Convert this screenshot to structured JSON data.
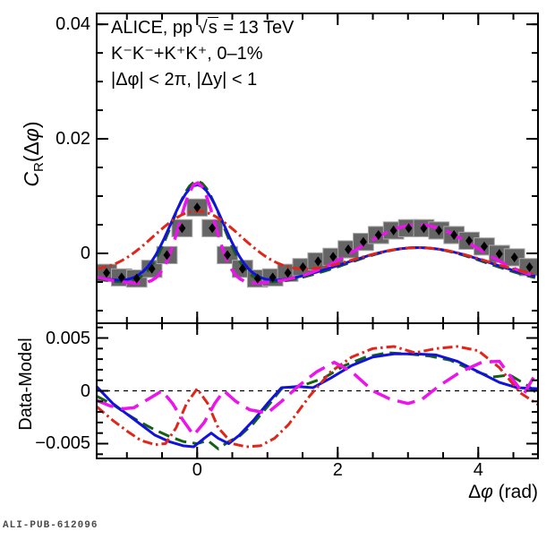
{
  "annotations": {
    "line1": {
      "prefix": "ALICE, pp ",
      "sqrt_sym": "√",
      "sqrt_arg": "s",
      "suffix": " = 13 TeV"
    },
    "line2": "K⁻K⁻+K⁺K⁺, 0–1%",
    "line3": "|Δφ| < 2π, |Δy| < 1"
  },
  "axes": {
    "x_title": {
      "delta": "Δ",
      "phi": "φ",
      "rest": " (rad)"
    },
    "y_title_main": {
      "c": "C",
      "sub": "R",
      "open": "(Δ",
      "phi": "φ",
      "close": ")"
    },
    "y_title_residual": "Data-Model"
  },
  "footer": "ALI-PUB-612096",
  "colors": {
    "frame": "#000000",
    "sys_box_fill": "#656565",
    "sys_box_edge": "#a9a9a9",
    "marker": "#000000",
    "green": "#146114",
    "blue": "#1212dd",
    "magenta": "#ec13ec",
    "red": "#e1251a"
  },
  "chart_data": [
    {
      "type": "scatter",
      "panel": "main",
      "annotations": [
        "ALICE, pp √s = 13 TeV",
        "K⁻K⁻+K⁺K⁺, 0–1%",
        "|Δφ| < 2π, |Δy| < 1"
      ],
      "xlabel": "Δφ (rad)",
      "ylabel": "C_R(Δφ)",
      "xlim": [
        -1.43,
        4.85
      ],
      "ylim": [
        -0.0122,
        0.0419
      ],
      "x_major_ticks": [
        0,
        2,
        4
      ],
      "x_tick_labels": [
        "0",
        "2",
        "4"
      ],
      "x_minor_step": 0.5,
      "show_x_labels": false,
      "y_major_ticks": [
        0,
        0.02,
        0.04
      ],
      "y_tick_labels": [
        "0",
        "0.02",
        "0.04"
      ],
      "y_minor_step": 0.005,
      "data_points": {
        "marker": "diamond",
        "x": [
          -1.29,
          -1.075,
          -0.86,
          -0.645,
          -0.43,
          -0.215,
          0,
          0.215,
          0.43,
          0.645,
          0.86,
          1.075,
          1.29,
          1.505,
          1.72,
          1.935,
          2.15,
          2.365,
          2.58,
          2.795,
          3.01,
          3.225,
          3.44,
          3.655,
          3.87,
          4.085,
          4.3,
          4.515,
          4.73
        ],
        "y": [
          -0.0034,
          -0.0042,
          -0.0044,
          -0.0027,
          -0.0003,
          0.0044,
          0.008,
          0.0044,
          -0.0003,
          -0.0027,
          -0.0044,
          -0.0042,
          -0.0034,
          -0.0024,
          -0.0014,
          -0.0006,
          0.0007,
          0.002,
          0.0032,
          0.004,
          0.0044,
          0.0044,
          0.004,
          0.0032,
          0.0022,
          0.0012,
          -0.0001,
          -0.0007,
          -0.0024
        ],
        "stat_err": 0.0006,
        "sys_half_width": 0.145,
        "sys_half_height": 0.0015
      },
      "models": [
        {
          "name": "fit-green-dashed",
          "color": "#146114",
          "style": "dashed",
          "width": 3,
          "base": -0.006,
          "near_amp": 0.0185,
          "near_sigma": 0.355,
          "away_amp": 0.007,
          "away_sigma": 1.0
        },
        {
          "name": "fit-blue-solid",
          "color": "#1212dd",
          "style": "solid",
          "width": 3,
          "base": -0.006,
          "near_amp": 0.0178,
          "near_sigma": 0.38,
          "away_amp": 0.007,
          "away_sigma": 1.05
        },
        {
          "name": "fit-magenta-longdash",
          "color": "#ec13ec",
          "style": "longdash",
          "width": 3.5,
          "base": -0.0055,
          "near_amp": 0.0178,
          "near_sigma": 0.25,
          "away_amp": 0.0105,
          "away_sigma": 0.85
        },
        {
          "name": "fit-red-dashdot",
          "color": "#e1251a",
          "style": "dashdot",
          "width": 3,
          "base": -0.0052,
          "near_amp": 0.0125,
          "near_sigma": 0.65,
          "away_amp": 0.0062,
          "away_sigma": 1.0
        }
      ]
    },
    {
      "type": "line",
      "panel": "residual",
      "ylabel": "Data-Model",
      "xlim": [
        -1.43,
        4.85
      ],
      "ylim": [
        -0.0064,
        0.0064
      ],
      "x_major_ticks": [
        0,
        2,
        4
      ],
      "x_tick_labels": [
        "0",
        "2",
        "4"
      ],
      "x_minor_step": 0.5,
      "show_x_labels": true,
      "y_major_ticks": [
        -0.005,
        0,
        0.005
      ],
      "y_tick_labels": [
        "−0.005",
        "0",
        "0.005"
      ],
      "y_minor_step": 0.001,
      "zero_line": true,
      "series": [
        {
          "name": "residual-green-dashed",
          "color": "#146114",
          "style": "dashed",
          "width": 3,
          "x": [
            -1.43,
            -1.2,
            -1.0,
            -0.8,
            -0.6,
            -0.4,
            -0.2,
            0,
            0.15,
            0.3,
            0.45,
            0.6,
            0.8,
            1.0,
            1.2,
            1.5,
            1.8,
            2.1,
            2.4,
            2.7,
            3.0,
            3.3,
            3.6,
            3.9,
            4.2,
            4.45,
            4.7,
            4.85
          ],
          "y": [
            -0.0005,
            -0.0013,
            -0.0022,
            -0.003,
            -0.0037,
            -0.0043,
            -0.0048,
            -0.005,
            -0.0047,
            -0.0055,
            -0.0048,
            -0.0043,
            -0.0031,
            -0.0015,
            0.0002,
            0.0005,
            0.0012,
            0.0024,
            0.0032,
            0.0036,
            0.0035,
            0.0033,
            0.0029,
            0.002,
            0.0013,
            0.0015,
            0.0005,
            -0.0003
          ]
        },
        {
          "name": "residual-blue-solid",
          "color": "#1212dd",
          "style": "solid",
          "width": 3,
          "x": [
            -1.43,
            -1.2,
            -1.0,
            -0.8,
            -0.6,
            -0.4,
            -0.2,
            -0.05,
            0.1,
            0.2,
            0.3,
            0.45,
            0.6,
            0.8,
            1.0,
            1.2,
            1.45,
            1.65,
            1.9,
            2.2,
            2.5,
            2.8,
            3.1,
            3.4,
            3.7,
            4.0,
            4.3,
            4.55,
            4.85
          ],
          "y": [
            0.0004,
            -0.0012,
            -0.0022,
            -0.0032,
            -0.0042,
            -0.0048,
            -0.0052,
            -0.0053,
            -0.0045,
            -0.004,
            -0.0045,
            -0.005,
            -0.0042,
            -0.0028,
            -0.0012,
            0.0003,
            0.0004,
            0.0003,
            0.0012,
            0.0024,
            0.0032,
            0.0035,
            0.0035,
            0.0034,
            0.0028,
            0.0018,
            0.0008,
            0.0003,
            0.0002
          ]
        },
        {
          "name": "residual-red-dashdot",
          "color": "#e1251a",
          "style": "dashdot",
          "width": 3,
          "x": [
            -1.43,
            -1.2,
            -1.0,
            -0.8,
            -0.6,
            -0.45,
            -0.3,
            -0.15,
            0,
            0.15,
            0.3,
            0.5,
            0.7,
            0.9,
            1.1,
            1.3,
            1.6,
            1.9,
            2.2,
            2.5,
            2.8,
            3.1,
            3.4,
            3.7,
            4.0,
            4.3,
            4.6,
            4.85
          ],
          "y": [
            -0.0015,
            -0.0028,
            -0.0038,
            -0.0047,
            -0.0051,
            -0.005,
            -0.0035,
            -0.0012,
            0.0002,
            -0.0012,
            -0.0035,
            -0.005,
            -0.0053,
            -0.0052,
            -0.0045,
            -0.0032,
            -0.0005,
            0.0018,
            0.0032,
            0.004,
            0.0042,
            0.0036,
            0.004,
            0.0042,
            0.0038,
            0.0022,
            -0.0002,
            -0.0013
          ]
        },
        {
          "name": "residual-magenta-longdash",
          "color": "#ec13ec",
          "style": "longdash",
          "width": 3.5,
          "x": [
            -1.43,
            -1.25,
            -1.05,
            -0.9,
            -0.7,
            -0.5,
            -0.35,
            -0.2,
            -0.05,
            0.1,
            0.25,
            0.38,
            0.55,
            0.75,
            1.0,
            1.2,
            1.45,
            1.7,
            1.95,
            2.2,
            2.5,
            2.75,
            3.0,
            3.2,
            3.45,
            3.75,
            4.05,
            4.3,
            4.5,
            4.65,
            4.85
          ],
          "y": [
            -0.0009,
            -0.0014,
            -0.0017,
            -0.0016,
            -0.0008,
            0.0,
            -0.0012,
            -0.0028,
            -0.0042,
            -0.003,
            -0.0012,
            0.0,
            -0.001,
            -0.0018,
            -0.0021,
            -0.001,
            0.0005,
            0.0018,
            0.0027,
            0.0018,
            0.0,
            -0.0008,
            -0.0012,
            -0.0008,
            0.0005,
            0.0018,
            0.0027,
            0.0028,
            0.001,
            -0.0003,
            0.002
          ]
        }
      ]
    }
  ]
}
